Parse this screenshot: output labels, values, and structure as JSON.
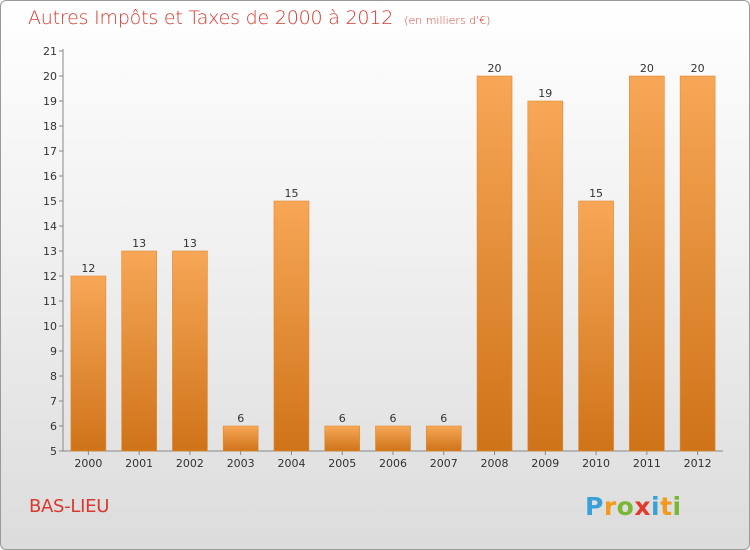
{
  "title": "Autres Impôts et Taxes de 2000 à 2012",
  "subtitle": "(en milliers d'€)",
  "commune": "BAS-LIEU",
  "logo": {
    "letters": [
      {
        "char": "P",
        "color": "#3aa0d8"
      },
      {
        "char": "r",
        "color": "#f39a1e"
      },
      {
        "char": "o",
        "color": "#7ab735"
      },
      {
        "char": "x",
        "color": "#e23b2e"
      },
      {
        "char": "i",
        "color": "#3aa0d8"
      },
      {
        "char": "t",
        "color": "#f39a1e"
      },
      {
        "char": "i",
        "color": "#7ab735"
      }
    ]
  },
  "colors": {
    "title": "#d9392e",
    "bar_top": "#f7a757",
    "bar_bottom": "#cf7319",
    "bar_edge": "#e08b33"
  },
  "chart_data": {
    "type": "bar",
    "title": "Autres Impôts et Taxes de 2000 à 2012",
    "subtitle": "(en milliers d'€)",
    "categories": [
      "2000",
      "2001",
      "2002",
      "2003",
      "2004",
      "2005",
      "2006",
      "2007",
      "2008",
      "2009",
      "2010",
      "2011",
      "2012"
    ],
    "values": [
      12,
      13,
      13,
      6,
      15,
      6,
      6,
      6,
      20,
      19,
      15,
      20,
      20
    ],
    "ylim": [
      5,
      21
    ],
    "yticks": [
      5,
      6,
      7,
      8,
      9,
      10,
      11,
      12,
      13,
      14,
      15,
      16,
      17,
      18,
      19,
      20,
      21
    ],
    "grid": false,
    "data_labels": true
  }
}
